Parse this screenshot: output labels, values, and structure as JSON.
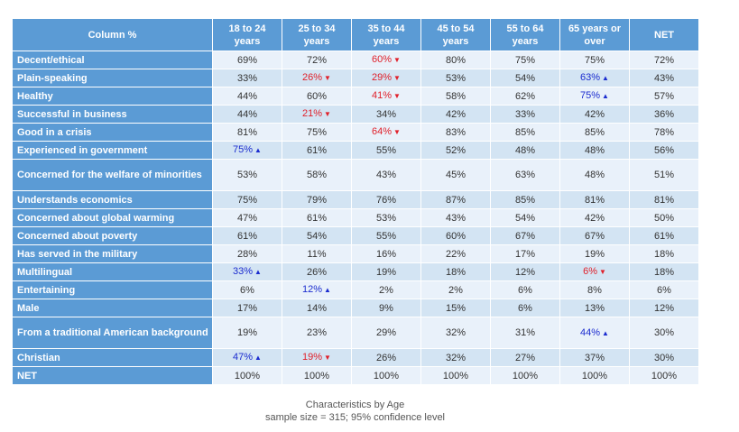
{
  "chart_data": {
    "type": "table",
    "corner_label": "Column %",
    "columns": [
      "18 to 24 years",
      "25 to 34 years",
      "35 to 44 years",
      "45 to 54 years",
      "55 to 64 years",
      "65 years or over",
      "NET"
    ],
    "rows": [
      {
        "label": "Decent/ethical",
        "values": [
          "69%",
          "72%",
          "60%",
          "80%",
          "75%",
          "75%",
          "72%"
        ],
        "sig": [
          "",
          "",
          "down",
          "",
          "",
          "",
          ""
        ],
        "height": 19
      },
      {
        "label": "Plain-speaking",
        "values": [
          "33%",
          "26%",
          "29%",
          "53%",
          "54%",
          "63%",
          "43%"
        ],
        "sig": [
          "",
          "down",
          "down",
          "",
          "",
          "up",
          ""
        ],
        "height": 19
      },
      {
        "label": "Healthy",
        "values": [
          "44%",
          "60%",
          "41%",
          "58%",
          "62%",
          "75%",
          "57%"
        ],
        "sig": [
          "",
          "",
          "down",
          "",
          "",
          "up",
          ""
        ],
        "height": 19
      },
      {
        "label": "Successful in business",
        "values": [
          "44%",
          "21%",
          "34%",
          "42%",
          "33%",
          "42%",
          "36%"
        ],
        "sig": [
          "",
          "down",
          "",
          "",
          "",
          "",
          ""
        ],
        "height": 19
      },
      {
        "label": "Good in a crisis",
        "values": [
          "81%",
          "75%",
          "64%",
          "83%",
          "85%",
          "85%",
          "78%"
        ],
        "sig": [
          "",
          "",
          "down",
          "",
          "",
          "",
          ""
        ],
        "height": 19
      },
      {
        "label": "Experienced in government",
        "values": [
          "75%",
          "61%",
          "55%",
          "52%",
          "48%",
          "48%",
          "56%"
        ],
        "sig": [
          "up",
          "",
          "",
          "",
          "",
          "",
          ""
        ],
        "height": 19
      },
      {
        "label": "Concerned for the welfare of minorities",
        "values": [
          "53%",
          "58%",
          "43%",
          "45%",
          "63%",
          "48%",
          "51%"
        ],
        "sig": [
          "",
          "",
          "",
          "",
          "",
          "",
          ""
        ],
        "height": 34
      },
      {
        "label": "Understands economics",
        "values": [
          "75%",
          "79%",
          "76%",
          "87%",
          "85%",
          "81%",
          "81%"
        ],
        "sig": [
          "",
          "",
          "",
          "",
          "",
          "",
          ""
        ],
        "height": 19
      },
      {
        "label": "Concerned about global warming",
        "values": [
          "47%",
          "61%",
          "53%",
          "43%",
          "54%",
          "42%",
          "50%"
        ],
        "sig": [
          "",
          "",
          "",
          "",
          "",
          "",
          ""
        ],
        "height": 19
      },
      {
        "label": "Concerned about poverty",
        "values": [
          "61%",
          "54%",
          "55%",
          "60%",
          "67%",
          "67%",
          "61%"
        ],
        "sig": [
          "",
          "",
          "",
          "",
          "",
          "",
          ""
        ],
        "height": 19
      },
      {
        "label": "Has served in the military",
        "values": [
          "28%",
          "11%",
          "16%",
          "22%",
          "17%",
          "19%",
          "18%"
        ],
        "sig": [
          "",
          "",
          "",
          "",
          "",
          "",
          ""
        ],
        "height": 19
      },
      {
        "label": "Multilingual",
        "values": [
          "33%",
          "26%",
          "19%",
          "18%",
          "12%",
          "6%",
          "18%"
        ],
        "sig": [
          "up",
          "",
          "",
          "",
          "",
          "down",
          ""
        ],
        "height": 19
      },
      {
        "label": "Entertaining",
        "values": [
          "6%",
          "12%",
          "2%",
          "2%",
          "6%",
          "8%",
          "6%"
        ],
        "sig": [
          "",
          "up",
          "",
          "",
          "",
          "",
          ""
        ],
        "height": 19
      },
      {
        "label": "Male",
        "values": [
          "17%",
          "14%",
          "9%",
          "15%",
          "6%",
          "13%",
          "12%"
        ],
        "sig": [
          "",
          "",
          "",
          "",
          "",
          "",
          ""
        ],
        "height": 19
      },
      {
        "label": "From a traditional American background",
        "values": [
          "19%",
          "23%",
          "29%",
          "32%",
          "31%",
          "44%",
          "30%"
        ],
        "sig": [
          "",
          "",
          "",
          "",
          "",
          "up",
          ""
        ],
        "height": 34
      },
      {
        "label": "Christian",
        "values": [
          "47%",
          "19%",
          "26%",
          "32%",
          "27%",
          "37%",
          "30%"
        ],
        "sig": [
          "up",
          "down",
          "",
          "",
          "",
          "",
          ""
        ],
        "height": 19
      },
      {
        "label": "NET",
        "values": [
          "100%",
          "100%",
          "100%",
          "100%",
          "100%",
          "100%",
          "100%"
        ],
        "sig": [
          "",
          "",
          "",
          "",
          "",
          "",
          ""
        ],
        "height": 19
      }
    ],
    "title": "Characteristics by Age",
    "subtitle": "sample size = 315; 95% confidence level",
    "colors": {
      "header": "#5b9bd5",
      "row_light": "#e9f1fa",
      "row_dark": "#d3e4f3",
      "sig_up": "#1b2ccf",
      "sig_down": "#e0202a"
    }
  }
}
